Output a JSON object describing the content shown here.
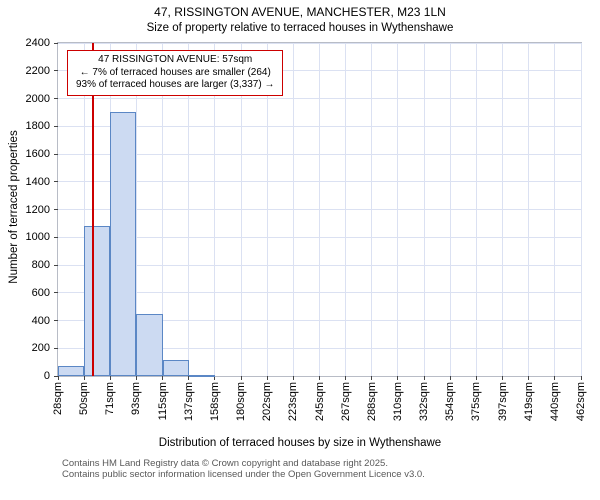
{
  "title": "47, RISSINGTON AVENUE, MANCHESTER, M23 1LN",
  "subtitle": "Size of property relative to terraced houses in Wythenshawe",
  "chart_data": {
    "type": "bar",
    "categories": [
      "28sqm",
      "50sqm",
      "71sqm",
      "93sqm",
      "115sqm",
      "137sqm",
      "158sqm",
      "180sqm",
      "202sqm",
      "223sqm",
      "245sqm",
      "267sqm",
      "288sqm",
      "310sqm",
      "332sqm",
      "354sqm",
      "375sqm",
      "397sqm",
      "419sqm",
      "440sqm",
      "462sqm"
    ],
    "values": [
      75,
      1080,
      1900,
      450,
      115,
      10,
      0,
      0,
      0,
      0,
      0,
      0,
      0,
      0,
      0,
      0,
      0,
      0,
      0,
      0
    ],
    "title": "47, RISSINGTON AVENUE, MANCHESTER, M23 1LN",
    "subtitle": "Size of property relative to terraced houses in Wythenshawe",
    "xlabel": "Distribution of terraced houses by size in Wythenshawe",
    "ylabel": "Number of terraced properties",
    "ylim": [
      0,
      2400
    ],
    "ytick_step": 200,
    "grid": true,
    "bar_fill": "#ccdaf2",
    "bar_border": "#5b87c5",
    "marker": {
      "value_sqm": 57,
      "x_min_sqm": 28,
      "x_max_sqm": 462,
      "color": "#cc0000"
    },
    "annotation": {
      "line1": "47 RISSINGTON AVENUE: 57sqm",
      "line2": "← 7% of terraced houses are smaller (264)",
      "line3": "93% of terraced houses are larger (3,337) →",
      "border_color": "#cc0000"
    }
  },
  "footer": {
    "line1": "Contains HM Land Registry data © Crown copyright and database right 2025.",
    "line2": "Contains public sector information licensed under the Open Government Licence v3.0."
  }
}
